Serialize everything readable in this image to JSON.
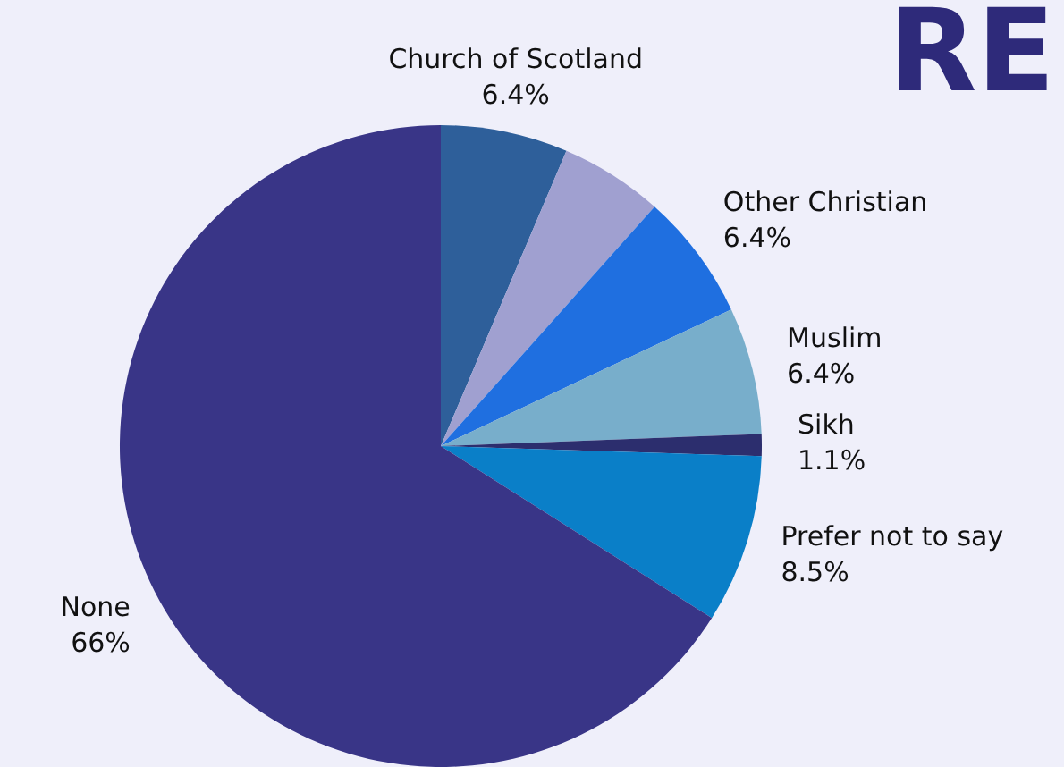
{
  "chart_data": {
    "type": "pie",
    "title": "RE",
    "categories": [
      "Church of Scotland",
      null,
      "Other Christian",
      "Muslim",
      "Sikh",
      "Prefer not to say",
      "None"
    ],
    "values": [
      6.4,
      5.2,
      6.4,
      6.4,
      1.1,
      8.5,
      66
    ],
    "value_labels": [
      "6.4%",
      null,
      "6.4%",
      "6.4%",
      "1.1%",
      "8.5%",
      "66%"
    ],
    "colors": [
      "#2e5f9a",
      "#a0a0d0",
      "#1f6fe0",
      "#78aecb",
      "#2c2e6e",
      "#0a7fc8",
      "#393587"
    ],
    "legend": false
  }
}
